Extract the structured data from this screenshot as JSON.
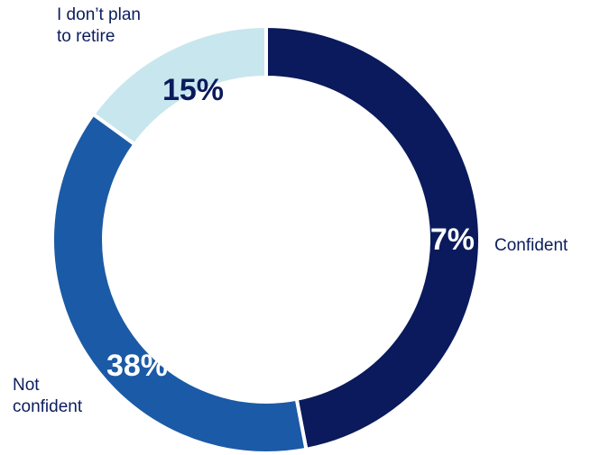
{
  "chart_data": {
    "type": "pie",
    "variant": "donut",
    "categories": [
      "Confident",
      "Not confident",
      "I don’t plan to retire"
    ],
    "values": [
      47,
      38,
      15
    ],
    "data_labels": [
      "47%",
      "38%",
      "15%"
    ],
    "category_labels": [
      [
        "Confident"
      ],
      [
        "Not",
        "confident"
      ],
      [
        "I don’t plan",
        "to retire"
      ]
    ],
    "colors": [
      "#0a1a5c",
      "#1b5aa6",
      "#c8e6ee"
    ],
    "label_colors": [
      "#ffffff",
      "#ffffff",
      "#0a1a5c"
    ],
    "title": "",
    "legend": "none"
  }
}
